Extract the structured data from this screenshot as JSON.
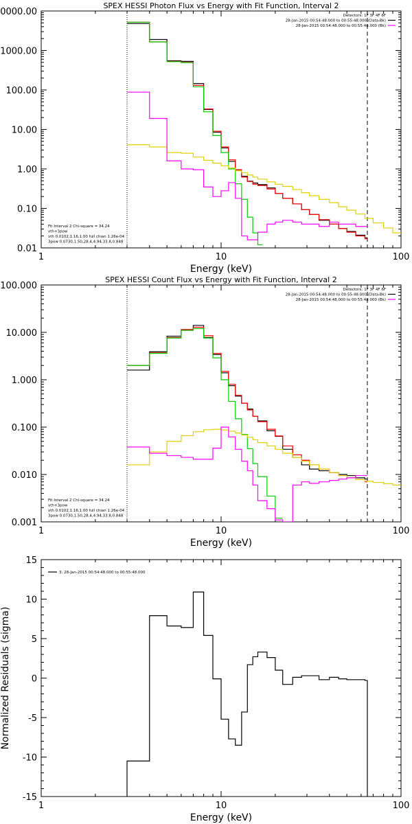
{
  "chart_data": [
    {
      "id": "photon",
      "type": "line",
      "title": "SPEX HESSI Photon Flux vs Energy with Fit Function, Interval 2",
      "xlabel": "Energy (keV)",
      "ylabel": "",
      "xscale": "log",
      "yscale": "log",
      "xlim": [
        1,
        100
      ],
      "ylim": [
        0.01,
        10000
      ],
      "x_ticks": [
        "1",
        "10",
        "100"
      ],
      "y_ticks": [
        "0.01",
        "0.10",
        "1.00",
        "10.00",
        "100.00",
        "1000.00",
        "10000.00"
      ],
      "legend_left": [
        {
          "text": "Fit Interval 2   Chi-square = 34.24",
          "color": "#000000"
        },
        {
          "text": "vth+3pow",
          "color": "#ff0000"
        },
        {
          "text": "vth 0.0102,1.16,1.00  full chian 1.26e-04",
          "color": "#00cc00"
        },
        {
          "text": "3pow 0.0730,1.50,28.4,4.94,33.8,0.848",
          "color": "#e0d000"
        }
      ],
      "legend_right": [
        {
          "text": "Detectors: 1F 3F 4F 6F",
          "color": null
        },
        {
          "text": "28-Jan-2015 00:54:48.000 to 00:55:48.000 (Data-Bk)",
          "color": "#000000"
        },
        {
          "text": "28-Jan-2015 00:54:48.000 to 00:55:48.000 (Bk)",
          "color": "#ff00ff"
        }
      ],
      "vlines": [
        {
          "x": 3.0,
          "style": "dotted"
        },
        {
          "x": 65.0,
          "style": "dashed"
        }
      ],
      "series": [
        {
          "name": "Data-Bk",
          "color": "#000000",
          "kind": "step",
          "edges": [
            3,
            4,
            5,
            6,
            7,
            8,
            9,
            10,
            11,
            12,
            13,
            14,
            15,
            16,
            18,
            20,
            22,
            25,
            28,
            31,
            35,
            40,
            45,
            50,
            56,
            63,
            65
          ],
          "values": [
            4800,
            1900,
            550,
            530,
            145,
            32,
            8.5,
            3.4,
            1.55,
            0.95,
            0.65,
            0.49,
            0.44,
            0.4,
            0.33,
            0.24,
            0.18,
            0.13,
            0.093,
            0.07,
            0.05,
            0.04,
            0.031,
            0.026,
            0.021,
            0.018
          ]
        },
        {
          "name": "vth+3pow",
          "color": "#ff0000",
          "kind": "step",
          "edges": [
            3,
            4,
            5,
            6,
            7,
            8,
            9,
            10,
            11,
            12,
            13,
            14,
            15,
            16,
            18,
            20,
            22,
            25,
            28,
            31,
            35,
            40,
            45,
            50,
            56,
            63,
            65
          ],
          "values": [
            5200,
            1650,
            530,
            500,
            130,
            33,
            9.0,
            3.6,
            1.7,
            0.95,
            0.62,
            0.48,
            0.41,
            0.38,
            0.31,
            0.24,
            0.18,
            0.13,
            0.093,
            0.07,
            0.052,
            0.04,
            0.031,
            0.025,
            0.02,
            0.017
          ]
        },
        {
          "name": "vth",
          "color": "#00cc00",
          "kind": "step",
          "edges": [
            3,
            4,
            5,
            6,
            7,
            8,
            9,
            10,
            11,
            12,
            13,
            14,
            15,
            16,
            17
          ],
          "values": [
            5200,
            1650,
            520,
            490,
            120,
            28,
            7.0,
            2.6,
            1.0,
            0.42,
            0.17,
            0.06,
            0.024,
            0.012
          ]
        },
        {
          "name": "3pow",
          "color": "#e0d000",
          "kind": "step",
          "edges": [
            3,
            4,
            5,
            6,
            7,
            8,
            9,
            10,
            11,
            12,
            13,
            14,
            15,
            16,
            18,
            20,
            22,
            25,
            28,
            31,
            35,
            40,
            45,
            50,
            56,
            63,
            70,
            80,
            90,
            100
          ],
          "values": [
            4.1,
            3.6,
            2.6,
            2.5,
            2.0,
            1.65,
            1.4,
            1.2,
            1.05,
            0.9,
            0.8,
            0.7,
            0.62,
            0.55,
            0.47,
            0.41,
            0.36,
            0.3,
            0.25,
            0.21,
            0.17,
            0.14,
            0.11,
            0.09,
            0.072,
            0.056,
            0.043,
            0.032,
            0.024
          ]
        },
        {
          "name": "Bk",
          "color": "#ff00ff",
          "kind": "step",
          "edges": [
            3,
            4,
            5,
            6,
            7,
            8,
            9,
            10,
            11,
            12,
            13,
            14,
            15,
            16,
            18,
            20,
            22,
            25,
            28,
            31,
            35,
            40,
            45,
            50,
            56,
            63,
            65
          ],
          "values": [
            88,
            19,
            1.6,
            1.0,
            0.95,
            0.35,
            0.2,
            0.28,
            0.45,
            0.18,
            0.02,
            0.016,
            0.016,
            0.025,
            0.04,
            0.045,
            0.05,
            0.045,
            0.04,
            0.04,
            0.035,
            0.045,
            0.04,
            0.04,
            0.035,
            0.035
          ]
        }
      ]
    },
    {
      "id": "count",
      "type": "line",
      "title": "SPEX HESSI Count Flux vs Energy with Fit Function, Interval 2",
      "xlabel": "Energy (keV)",
      "ylabel": "",
      "xscale": "log",
      "yscale": "log",
      "xlim": [
        1,
        100
      ],
      "ylim": [
        0.001,
        100
      ],
      "x_ticks": [
        "1",
        "10",
        "100"
      ],
      "y_ticks": [
        "0.001",
        "0.010",
        "0.100",
        "1.000",
        "10.000",
        "100.000"
      ],
      "legend_left": [
        {
          "text": "Fit Interval 2   Chi-square = 34.24",
          "color": "#000000"
        },
        {
          "text": "vth+3pow",
          "color": "#ff0000"
        },
        {
          "text": "vth 0.0102,1.16,1.00  full chian 1.26e-04",
          "color": "#00cc00"
        },
        {
          "text": "3pow 0.0730,1.50,28.4,4.94,33.8,0.848",
          "color": "#e0d000"
        }
      ],
      "legend_right": [
        {
          "text": "Detectors: 1F 3F 4F 6F",
          "color": null
        },
        {
          "text": "28-Jan-2015 00:54:48.000 to 00:55:48.000 (Data-Bk)",
          "color": "#000000"
        },
        {
          "text": "28-Jan-2015 00:54:48.000 to 00:55:48.000 (Bk)",
          "color": "#ff00ff"
        }
      ],
      "vlines": [
        {
          "x": 3.0,
          "style": "dotted"
        },
        {
          "x": 65.0,
          "style": "dashed"
        }
      ],
      "series": [
        {
          "name": "Data-Bk",
          "color": "#000000",
          "kind": "step",
          "edges": [
            3,
            4,
            5,
            6,
            7,
            8,
            9,
            10,
            11,
            12,
            13,
            14,
            15,
            16,
            18,
            20,
            22,
            25,
            28,
            31,
            35,
            40,
            45,
            50,
            56,
            63,
            65
          ],
          "values": [
            1.6,
            3.9,
            8.3,
            11.2,
            14.0,
            7.8,
            3.4,
            1.4,
            0.75,
            0.45,
            0.32,
            0.24,
            0.17,
            0.135,
            0.084,
            0.064,
            0.034,
            0.023,
            0.016,
            0.013,
            0.012,
            0.011,
            0.01,
            0.0095,
            0.0085,
            0.008
          ]
        },
        {
          "name": "vth+3pow",
          "color": "#ff0000",
          "kind": "step",
          "edges": [
            3,
            4,
            5,
            6,
            7,
            8,
            9,
            10,
            11,
            12,
            13,
            14,
            15,
            16,
            18,
            20,
            22,
            25,
            28,
            31,
            35,
            40,
            45,
            50,
            56,
            63,
            65
          ],
          "values": [
            2.0,
            3.7,
            7.8,
            11.5,
            12.8,
            8.5,
            3.6,
            1.5,
            0.8,
            0.47,
            0.32,
            0.23,
            0.17,
            0.13,
            0.09,
            0.065,
            0.04,
            0.026,
            0.02,
            0.016,
            0.013,
            0.011,
            0.0095,
            0.0085,
            0.0078,
            0.007
          ]
        },
        {
          "name": "vth",
          "color": "#00cc00",
          "kind": "step",
          "edges": [
            3,
            4,
            5,
            6,
            7,
            8,
            9,
            10,
            11,
            12,
            13,
            14,
            15,
            16,
            18,
            20,
            22
          ],
          "values": [
            2.0,
            3.6,
            7.6,
            11.0,
            12.0,
            7.6,
            2.9,
            1.0,
            0.35,
            0.15,
            0.07,
            0.035,
            0.017,
            0.009,
            0.0035,
            0.0012
          ]
        },
        {
          "name": "3pow",
          "color": "#e0d000",
          "kind": "step",
          "edges": [
            3,
            4,
            5,
            6,
            7,
            8,
            9,
            10,
            11,
            12,
            13,
            14,
            15,
            16,
            18,
            20,
            22,
            25,
            28,
            31,
            35,
            40,
            45,
            50,
            56,
            63,
            70,
            80,
            90,
            100
          ],
          "values": [
            0.016,
            0.03,
            0.05,
            0.066,
            0.08,
            0.088,
            0.09,
            0.087,
            0.082,
            0.075,
            0.068,
            0.061,
            0.054,
            0.047,
            0.04,
            0.034,
            0.028,
            0.023,
            0.019,
            0.016,
            0.013,
            0.011,
            0.0095,
            0.0085,
            0.0078,
            0.0072,
            0.0068,
            0.0064,
            0.006
          ]
        },
        {
          "name": "Bk",
          "color": "#ff00ff",
          "kind": "step",
          "edges": [
            3,
            4,
            5,
            6,
            7,
            8,
            9,
            10,
            11,
            12,
            13,
            14,
            15,
            16,
            18,
            20,
            22,
            25,
            28,
            31,
            35,
            40,
            45,
            50,
            56,
            63,
            65
          ],
          "values": [
            0.038,
            0.028,
            0.025,
            0.023,
            0.021,
            0.021,
            0.036,
            0.1,
            0.062,
            0.034,
            0.019,
            0.012,
            0.006,
            0.0028,
            0.0019,
            0.0011,
            0.001,
            0.006,
            0.007,
            0.0065,
            0.007,
            0.0075,
            0.008,
            0.0085,
            0.0095,
            0.0095
          ]
        }
      ]
    },
    {
      "id": "residuals",
      "type": "line",
      "title": "",
      "xlabel": "Energy (keV)",
      "ylabel": "Normalized Residuals (sigma)",
      "xscale": "log",
      "yscale": "linear",
      "xlim": [
        1,
        100
      ],
      "ylim": [
        -15,
        15
      ],
      "x_ticks": [
        "1",
        "10",
        "100"
      ],
      "y_ticks": [
        "-15",
        "-10",
        "-5",
        "0",
        "5",
        "10",
        "15"
      ],
      "legend_left": [
        {
          "text": "3: 28-Jan-2015 00:54:48.000 to 00:55:48.000",
          "color": "#000000"
        }
      ],
      "legend_right": [],
      "vlines": [],
      "series": [
        {
          "name": "3: 28-Jan-2015 00:54:48.000 to 00:55:48.000",
          "color": "#000000",
          "kind": "step",
          "edges": [
            3,
            4,
            5,
            6,
            7,
            8,
            9,
            10,
            11,
            12,
            13,
            14,
            15,
            16,
            18,
            20,
            22,
            25,
            28,
            31,
            35,
            40,
            45,
            50,
            56,
            63,
            65
          ],
          "values": [
            -10.5,
            7.9,
            6.6,
            6.4,
            10.9,
            5.4,
            -0.1,
            -5.2,
            -7.7,
            -8.5,
            -4.3,
            1.7,
            2.7,
            3.3,
            2.6,
            1.0,
            -0.8,
            0.1,
            0.3,
            0.3,
            -0.2,
            0.1,
            -0.1,
            -0.2,
            -0.2,
            -0.3
          ],
          "drop_to_bottom": true
        }
      ]
    }
  ]
}
